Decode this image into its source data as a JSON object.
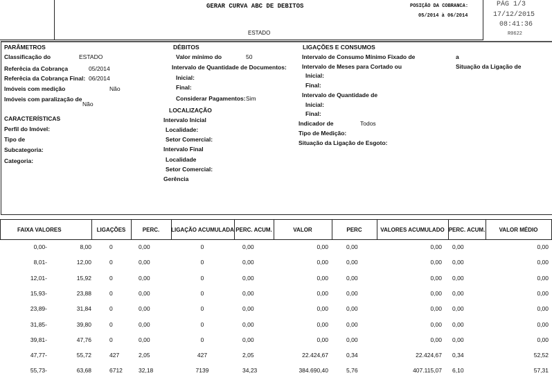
{
  "header": {
    "title": "GERAR CURVA ABC DE DEBITOS",
    "subtitle": "ESTADO",
    "position_label": "POSIÇÃO DA COBRANCA:",
    "position_value": "05/2014 à 06/2014",
    "page": "PÁG 1/3",
    "date": "17/12/2015",
    "time": "08:41:36",
    "report_code": "R0622"
  },
  "parametros": {
    "title": "PARÂMETROS",
    "items": [
      {
        "label": "Classificação do",
        "value": "ESTADO"
      },
      {
        "label": "Referêcia da Cobrança",
        "value": "05/2014"
      },
      {
        "label": "Referêcia da Cobrança Final:",
        "value": "06/2014"
      },
      {
        "label": "Imóveis com medição",
        "value": "Não"
      },
      {
        "label": "Imóveis com paralização de",
        "value": "Não"
      }
    ]
  },
  "caracteristicas": {
    "title": "CARACTERÍSTICAS",
    "items": [
      "Perfil do Imóvel:",
      "Tipo de",
      "Subcategoria:",
      "Categoria:"
    ]
  },
  "debitos": {
    "title": "DÉBITOS",
    "valor_minimo_label": "Valor mínimo do",
    "valor_minimo": "50",
    "intervalo_docs": "Intervalo de Quantidade de Documentos:",
    "inicial": "Inicial:",
    "final": "Final:",
    "considerar_label": "Considerar Pagamentos:",
    "considerar": "Sim"
  },
  "localizacao": {
    "title": "LOCALIZAÇÃO",
    "items": [
      "Intervalo Inicial",
      "Localidade:",
      "Setor Comercial:",
      "Intervalo Final",
      "Localidade",
      "Setor Comercial:",
      "Gerência"
    ]
  },
  "ligacoes": {
    "title": "LIGAÇÕES E CONSUMOS",
    "consumo": "Intervalo de Consumo Mínimo Fixado de",
    "consumo_a": "a",
    "meses": "Intervalo de Meses para Cortado ou",
    "situacao_lig": "Situação da Ligação de",
    "inicial1": "Inicial:",
    "final1": "Final:",
    "quantidade": "Intervalo de Quantidade de",
    "inicial2": "Inicial:",
    "final2": "Final:",
    "indicador_label": "Indicador de",
    "indicador": "Todos",
    "tipo_medicao": "Tipo de Medição:",
    "situacao_esgoto": "Situação da Ligação de Esgoto:"
  },
  "table": {
    "columns": [
      "FAIXA VALORES",
      "LIGAÇÕES",
      "PERC.",
      "LIGAÇÃO ACUMULADA",
      "PERC. ACUM.",
      "VALOR",
      "PERC",
      "VALORES ACUMULADO",
      "PERC. ACUM.",
      "VALOR MÉDIO"
    ],
    "rows": [
      [
        "0,00-",
        "8,00",
        "0",
        "0,00",
        "0",
        "0,00",
        "0,00",
        "0,00",
        "0,00",
        "0,00",
        "0,00"
      ],
      [
        "8,01-",
        "12,00",
        "0",
        "0,00",
        "0",
        "0,00",
        "0,00",
        "0,00",
        "0,00",
        "0,00",
        "0,00"
      ],
      [
        "12,01-",
        "15,92",
        "0",
        "0,00",
        "0",
        "0,00",
        "0,00",
        "0,00",
        "0,00",
        "0,00",
        "0,00"
      ],
      [
        "15,93-",
        "23,88",
        "0",
        "0,00",
        "0",
        "0,00",
        "0,00",
        "0,00",
        "0,00",
        "0,00",
        "0,00"
      ],
      [
        "23,89-",
        "31,84",
        "0",
        "0,00",
        "0",
        "0,00",
        "0,00",
        "0,00",
        "0,00",
        "0,00",
        "0,00"
      ],
      [
        "31,85-",
        "39,80",
        "0",
        "0,00",
        "0",
        "0,00",
        "0,00",
        "0,00",
        "0,00",
        "0,00",
        "0,00"
      ],
      [
        "39,81-",
        "47,76",
        "0",
        "0,00",
        "0",
        "0,00",
        "0,00",
        "0,00",
        "0,00",
        "0,00",
        "0,00"
      ],
      [
        "47,77-",
        "55,72",
        "427",
        "2,05",
        "427",
        "2,05",
        "22.424,67",
        "0,34",
        "22.424,67",
        "0,34",
        "52,52"
      ],
      [
        "55,73-",
        "63,68",
        "6712",
        "32,18",
        "7139",
        "34,23",
        "384.690,40",
        "5,76",
        "407.115,07",
        "6,10",
        "57,31"
      ]
    ]
  }
}
